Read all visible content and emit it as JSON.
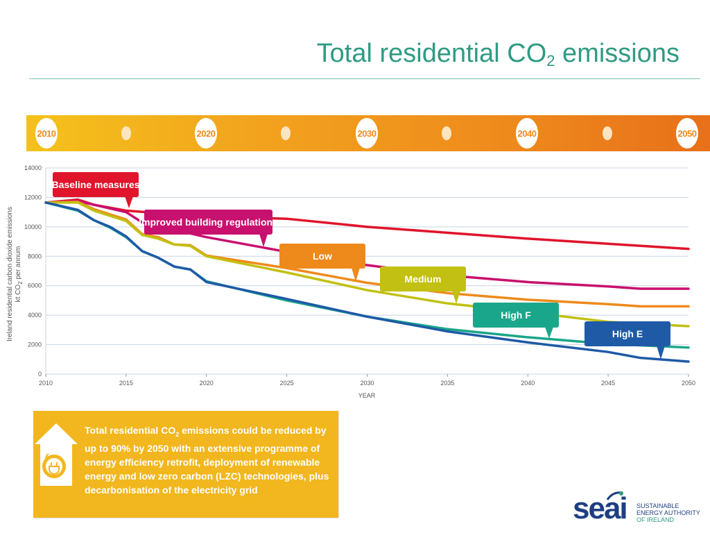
{
  "title": {
    "main": "Total residential CO",
    "sub": "2",
    "tail": " emissions"
  },
  "timeline": {
    "years": [
      "2010",
      "2020",
      "2030",
      "2040",
      "2050"
    ]
  },
  "chart_data": {
    "type": "line",
    "xlabel": "YEAR",
    "ylabel_line1": "Ireland residential carbon dioxide emissions",
    "ylabel_line2": "kt CO",
    "ylabel_sub": "2",
    "ylabel_tail": " per annum",
    "xlim": [
      2010,
      2050
    ],
    "ylim": [
      0,
      14000
    ],
    "x_ticks": [
      2010,
      2015,
      2020,
      2025,
      2030,
      2035,
      2040,
      2045,
      2050
    ],
    "x_tick_labels": [
      "2010",
      "2015",
      "2020",
      "2025",
      "2030",
      "2035",
      "2040",
      "2045",
      "2050"
    ],
    "y_ticks": [
      0,
      2000,
      4000,
      6000,
      8000,
      10000,
      12000,
      14000
    ],
    "y_tick_labels": [
      "0",
      "2000",
      "4000",
      "6000",
      "8000",
      "10000",
      "12000",
      "14000"
    ],
    "grid": true,
    "series": [
      {
        "name": "Baseline measures",
        "color": "#e0142b",
        "x": [
          2010,
          2012,
          2013,
          2015,
          2020,
          2025,
          2030,
          2035,
          2040,
          2045,
          2050
        ],
        "y": [
          11650,
          11850,
          11500,
          11100,
          10700,
          10550,
          10000,
          9600,
          9200,
          8850,
          8500
        ]
      },
      {
        "name": "Improved building regulations",
        "color": "#c8106e",
        "x": [
          2010,
          2012,
          2015,
          2016,
          2020,
          2025,
          2030,
          2035,
          2040,
          2045,
          2047,
          2050
        ],
        "y": [
          11650,
          11750,
          11000,
          10300,
          9300,
          8300,
          7400,
          6700,
          6250,
          5950,
          5800,
          5800
        ]
      },
      {
        "name": "Low",
        "color": "#ee8a1c",
        "x": [
          2010,
          2012,
          2013,
          2015,
          2016,
          2017,
          2018,
          2019,
          2020,
          2025,
          2030,
          2035,
          2040,
          2045,
          2047,
          2050
        ],
        "y": [
          11650,
          11700,
          11200,
          10500,
          9500,
          9300,
          8800,
          8750,
          8050,
          7200,
          6200,
          5500,
          5050,
          4750,
          4600,
          4600
        ]
      },
      {
        "name": "Medium",
        "color": "#c2c012",
        "x": [
          2010,
          2012,
          2013,
          2015,
          2016,
          2017,
          2018,
          2019,
          2020,
          2025,
          2030,
          2035,
          2040,
          2045,
          2050
        ],
        "y": [
          11650,
          11650,
          11100,
          10400,
          9450,
          9200,
          8800,
          8700,
          8000,
          6900,
          5700,
          4800,
          4200,
          3550,
          3250
        ]
      },
      {
        "name": "High F",
        "color": "#1aa68a",
        "x": [
          2010,
          2012,
          2013,
          2014,
          2015,
          2016,
          2017,
          2018,
          2019,
          2020,
          2025,
          2030,
          2035,
          2040,
          2045,
          2050
        ],
        "y": [
          11650,
          11100,
          10450,
          9950,
          9300,
          8350,
          7900,
          7300,
          7100,
          6300,
          5000,
          3900,
          3050,
          2500,
          2050,
          1800
        ]
      },
      {
        "name": "High E",
        "color": "#1e5aa6",
        "x": [
          2010,
          2012,
          2013,
          2014,
          2015,
          2016,
          2017,
          2018,
          2019,
          2020,
          2025,
          2030,
          2035,
          2040,
          2045,
          2047,
          2050
        ],
        "y": [
          11650,
          11150,
          10450,
          10000,
          9350,
          8350,
          7900,
          7300,
          7100,
          6250,
          5100,
          3900,
          2900,
          2150,
          1500,
          1100,
          850
        ]
      }
    ]
  },
  "info_box": {
    "line1_a": "Total residential CO",
    "line1_sub": "2",
    "line1_b": " emissions could be reduced",
    "rest": "by up to 90% by 2050 with an extensive programme of energy efficiency retrofit, deployment of renewable energy and low zero carbon (LZC) technologies, plus decarbonisation of the electricity grid",
    "bg_color": "#f2b71e"
  },
  "logo": {
    "word": "seai",
    "line1": "SUSTAINABLE",
    "line2": "ENERGY AUTHORITY",
    "line3": "OF IRELAND"
  }
}
